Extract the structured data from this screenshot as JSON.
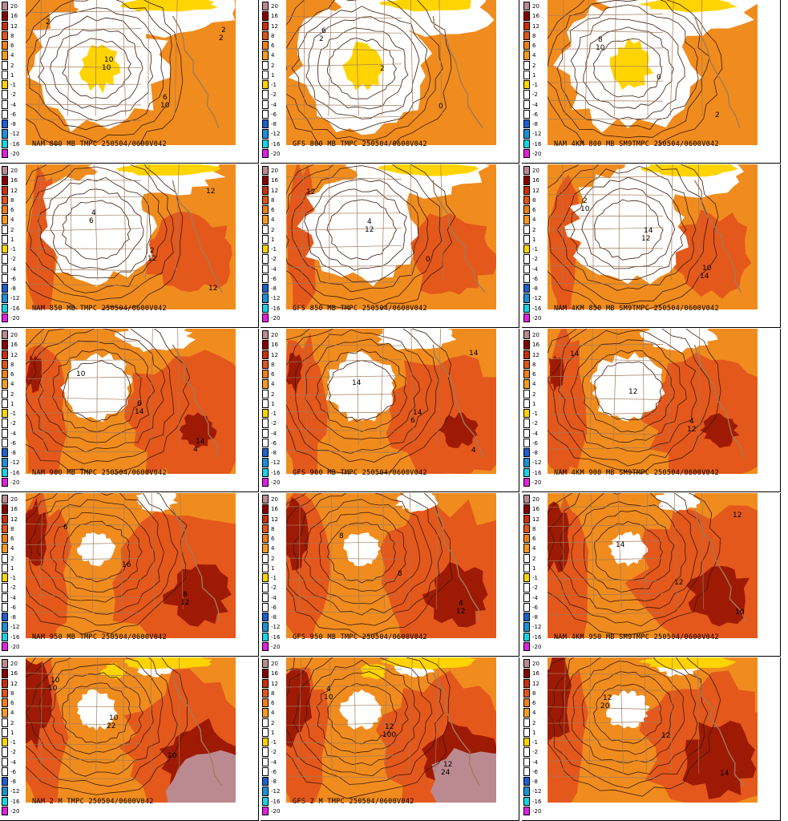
{
  "legend": {
    "labels": [
      "20",
      "16",
      "12",
      "8",
      "6",
      "4",
      "2",
      "1",
      "-1",
      "-2",
      "-4",
      "-6",
      "-8",
      "-12",
      "-16",
      "-20"
    ],
    "colors": [
      "#bb8a90",
      "#8b0000",
      "#c8300a",
      "#e2551a",
      "#f07f1a",
      "#f59b22",
      "#ffffff",
      "#ffffff",
      "#ffd400",
      "#ffffff",
      "#ffffff",
      "#ffffff",
      "#1e5fd0",
      "#1c8fd8",
      "#19d2e6",
      "#e020e0"
    ]
  },
  "colors": {
    "cold_white": "#ffffff",
    "mild_orange": "#f08c1e",
    "warm_orange": "#e4581c",
    "hot_red": "#9e1a04",
    "very_hot": "#bb8a90",
    "freezing_yellow": "#ffd400",
    "contour": "#3a1a0a",
    "borders": "#a07a5a"
  },
  "panels": [
    {
      "id": "r0c0",
      "caption": "NAM 800 MB TMPC 250504/0600V042",
      "labels": [
        "2",
        "10",
        "6",
        "2",
        "10",
        "10",
        "2"
      ]
    },
    {
      "id": "r0c1",
      "caption": "GFS 800 MB TMPC 250504/0600V042",
      "labels": [
        "6",
        "2",
        "0",
        "2"
      ]
    },
    {
      "id": "r0c2",
      "caption": "NAM 4KM 800 MB SM9TMPC 250504/0600V042",
      "labels": [
        "8",
        "0",
        "2",
        "10"
      ]
    },
    {
      "id": "r1c0",
      "caption": "NAM 850 MB TMPC 250504/0600V042",
      "labels": [
        "4",
        "2",
        "12",
        "6",
        "12",
        "12"
      ]
    },
    {
      "id": "r1c1",
      "caption": "GFS 850 MB TMPC 250504/0600V042",
      "labels": [
        "4",
        "0",
        "12",
        "12"
      ]
    },
    {
      "id": "r1c2",
      "caption": "NAM 4KM 850 MB SM9TMPC 250504/0600V042",
      "labels": [
        "14",
        "10",
        "2",
        "12",
        "14",
        "10"
      ]
    },
    {
      "id": "r2c0",
      "caption": "NAM 900 MB TMPC 250504/0600V042",
      "labels": [
        "6",
        "14",
        "10",
        "14",
        "4"
      ]
    },
    {
      "id": "r2c1",
      "caption": "GFS 900 MB TMPC 250504/0600V042",
      "labels": [
        "14",
        "4",
        "14",
        "6",
        "14"
      ]
    },
    {
      "id": "r2c2",
      "caption": "NAM 4KM 900 MB SM9TMPC 250504/0600V042",
      "labels": [
        "4",
        "14",
        "12",
        "12"
      ]
    },
    {
      "id": "r3c0",
      "caption": "NAM 950 MB TMPC 250504/0600V042",
      "labels": [
        "8",
        "6",
        "16",
        "12"
      ]
    },
    {
      "id": "r3c1",
      "caption": "GFS 950 MB TMPC 250504/0600V042",
      "labels": [
        "4",
        "8",
        "8",
        "12"
      ]
    },
    {
      "id": "r3c2",
      "caption": "NAM 4KM 950 MB SM9TMPC 250504/0600V042",
      "labels": [
        "10",
        "14",
        "12",
        "12"
      ]
    },
    {
      "id": "r4c0",
      "caption": "NAM 2 M TMPC 250504/0600V042",
      "labels": [
        "10",
        "10",
        "10",
        "10",
        "22"
      ]
    },
    {
      "id": "r4c1",
      "caption": "GFS 2 M TMPC 250504/0600V042",
      "labels": [
        "4",
        "12",
        "12",
        "10",
        "100",
        "24"
      ]
    },
    {
      "id": "r4c2",
      "caption": "",
      "labels": [
        "12",
        "12",
        "14",
        "20"
      ]
    }
  ]
}
